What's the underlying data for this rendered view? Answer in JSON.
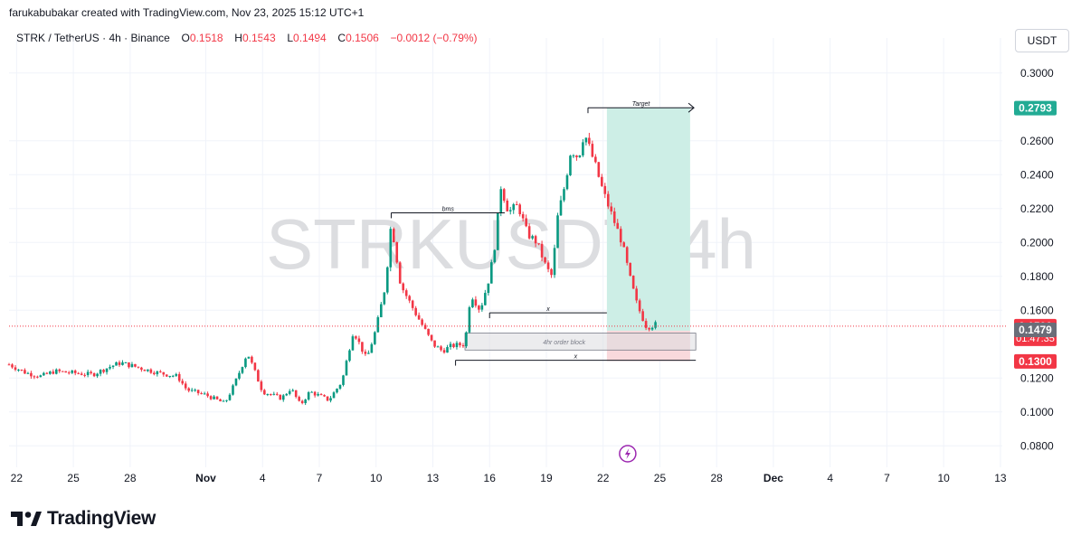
{
  "header": {
    "attribution": "farukabubakar created with TradingView.com, Nov 23, 2025 15:12 UTC+1"
  },
  "legend": {
    "symbol": "STRK / TetherUS · 4h · Binance",
    "open_label": "O",
    "open": "0.1518",
    "high_label": "H",
    "high": "0.1543",
    "low_label": "L",
    "low": "0.1494",
    "close_label": "C",
    "close": "0.1506",
    "change": "−0.0012 (−0.79%)"
  },
  "currency": "USDT",
  "watermark": "STRKUSDT, 4h",
  "footer": {
    "brand": "TradingView"
  },
  "colors": {
    "up": "#089981",
    "down": "#f23645",
    "target_zone": "#cdeee6",
    "stop_zone": "#f9d9dc",
    "target_badge": "#22ab94",
    "stop_badge": "#f23645",
    "price_badge": "#f23645",
    "entry_badge": "#6a6d78",
    "watermark": "#dcdde0",
    "lightning": "#9c27b0"
  },
  "chart_data": {
    "type": "candlestick",
    "y_axis": {
      "ticks": [
        "0.3000",
        "0.2600",
        "0.2400",
        "0.2200",
        "0.2000",
        "0.1800",
        "0.1600",
        "0.1200",
        "0.1000",
        "0.0800"
      ],
      "range": [
        0.07,
        0.31
      ]
    },
    "x_axis": {
      "ticks": [
        {
          "label": "22",
          "day": 22
        },
        {
          "label": "25",
          "day": 25
        },
        {
          "label": "28",
          "day": 28
        },
        {
          "label": "Nov",
          "day": 32,
          "bold": true
        },
        {
          "label": "4",
          "day": 35
        },
        {
          "label": "7",
          "day": 38
        },
        {
          "label": "10",
          "day": 41
        },
        {
          "label": "13",
          "day": 44
        },
        {
          "label": "16",
          "day": 47
        },
        {
          "label": "19",
          "day": 50
        },
        {
          "label": "22",
          "day": 53
        },
        {
          "label": "25",
          "day": 56
        },
        {
          "label": "28",
          "day": 59
        },
        {
          "label": "Dec",
          "day": 62,
          "bold": true
        },
        {
          "label": "4",
          "day": 65
        },
        {
          "label": "7",
          "day": 68
        },
        {
          "label": "10",
          "day": 71
        },
        {
          "label": "13",
          "day": 74
        }
      ],
      "range": [
        21.6,
        74.1
      ]
    },
    "price_path": [
      [
        21.6,
        0.128
      ],
      [
        22.5,
        0.123
      ],
      [
        23.3,
        0.121
      ],
      [
        24,
        0.124
      ],
      [
        25,
        0.123
      ],
      [
        26,
        0.122
      ],
      [
        27,
        0.127
      ],
      [
        27.5,
        0.129
      ],
      [
        28.5,
        0.126
      ],
      [
        29.5,
        0.123
      ],
      [
        30.5,
        0.121
      ],
      [
        31,
        0.113
      ],
      [
        32,
        0.11
      ],
      [
        33,
        0.105
      ],
      [
        33.5,
        0.116
      ],
      [
        34.2,
        0.135
      ],
      [
        35,
        0.112
      ],
      [
        36,
        0.108
      ],
      [
        36.5,
        0.114
      ],
      [
        37,
        0.104
      ],
      [
        37.5,
        0.112
      ],
      [
        38.5,
        0.107
      ],
      [
        39.2,
        0.118
      ],
      [
        39.8,
        0.148
      ],
      [
        40.5,
        0.131
      ],
      [
        41,
        0.149
      ],
      [
        41.5,
        0.175
      ],
      [
        41.8,
        0.212
      ],
      [
        42.3,
        0.175
      ],
      [
        43,
        0.16
      ],
      [
        43.5,
        0.15
      ],
      [
        44,
        0.14
      ],
      [
        44.5,
        0.136
      ],
      [
        45,
        0.139
      ],
      [
        45.7,
        0.14
      ],
      [
        46,
        0.17
      ],
      [
        46.5,
        0.16
      ],
      [
        47,
        0.18
      ],
      [
        47.3,
        0.2
      ],
      [
        47.6,
        0.233
      ],
      [
        48,
        0.218
      ],
      [
        48.5,
        0.222
      ],
      [
        49,
        0.205
      ],
      [
        49.5,
        0.2
      ],
      [
        50,
        0.185
      ],
      [
        50.3,
        0.18
      ],
      [
        50.6,
        0.215
      ],
      [
        51,
        0.235
      ],
      [
        51.3,
        0.255
      ],
      [
        51.7,
        0.25
      ],
      [
        52,
        0.265
      ],
      [
        52.3,
        0.255
      ],
      [
        52.6,
        0.245
      ],
      [
        53,
        0.23
      ],
      [
        53.4,
        0.218
      ],
      [
        54,
        0.2
      ],
      [
        54.4,
        0.18
      ],
      [
        54.8,
        0.163
      ],
      [
        55.3,
        0.15
      ],
      [
        55.9,
        0.152
      ]
    ],
    "current_price": {
      "value": 0.1506,
      "label": "0.1506",
      "countdown": "01:47:35"
    },
    "position": {
      "target": {
        "value": 0.2793,
        "label": "0.2793"
      },
      "entry": {
        "value": 0.1479,
        "label": "0.1479"
      },
      "stop": {
        "value": 0.13,
        "label": "0.1300"
      },
      "start_day": 53.2,
      "end_day": 57.6
    },
    "annotations": [
      {
        "text": "Target",
        "from": [
          52.2,
          0.2795
        ],
        "to": [
          57.8,
          0.2795
        ],
        "arrow": true
      },
      {
        "text": "bms",
        "from": [
          41.8,
          0.2175
        ],
        "to": [
          47.8,
          0.2175
        ],
        "arrow": false
      },
      {
        "text": "x",
        "from": [
          47.0,
          0.1585
        ],
        "to": [
          53.2,
          0.1585
        ],
        "arrow": false
      },
      {
        "text": "x",
        "from": [
          45.2,
          0.1305
        ],
        "to": [
          57.9,
          0.1305
        ],
        "arrow": false
      }
    ],
    "order_block": {
      "text": "4hr order block",
      "x_from": [
        45.7
      ],
      "x_to": [
        57.9
      ],
      "y_from": 0.1465,
      "y_to": 0.1365
    }
  }
}
